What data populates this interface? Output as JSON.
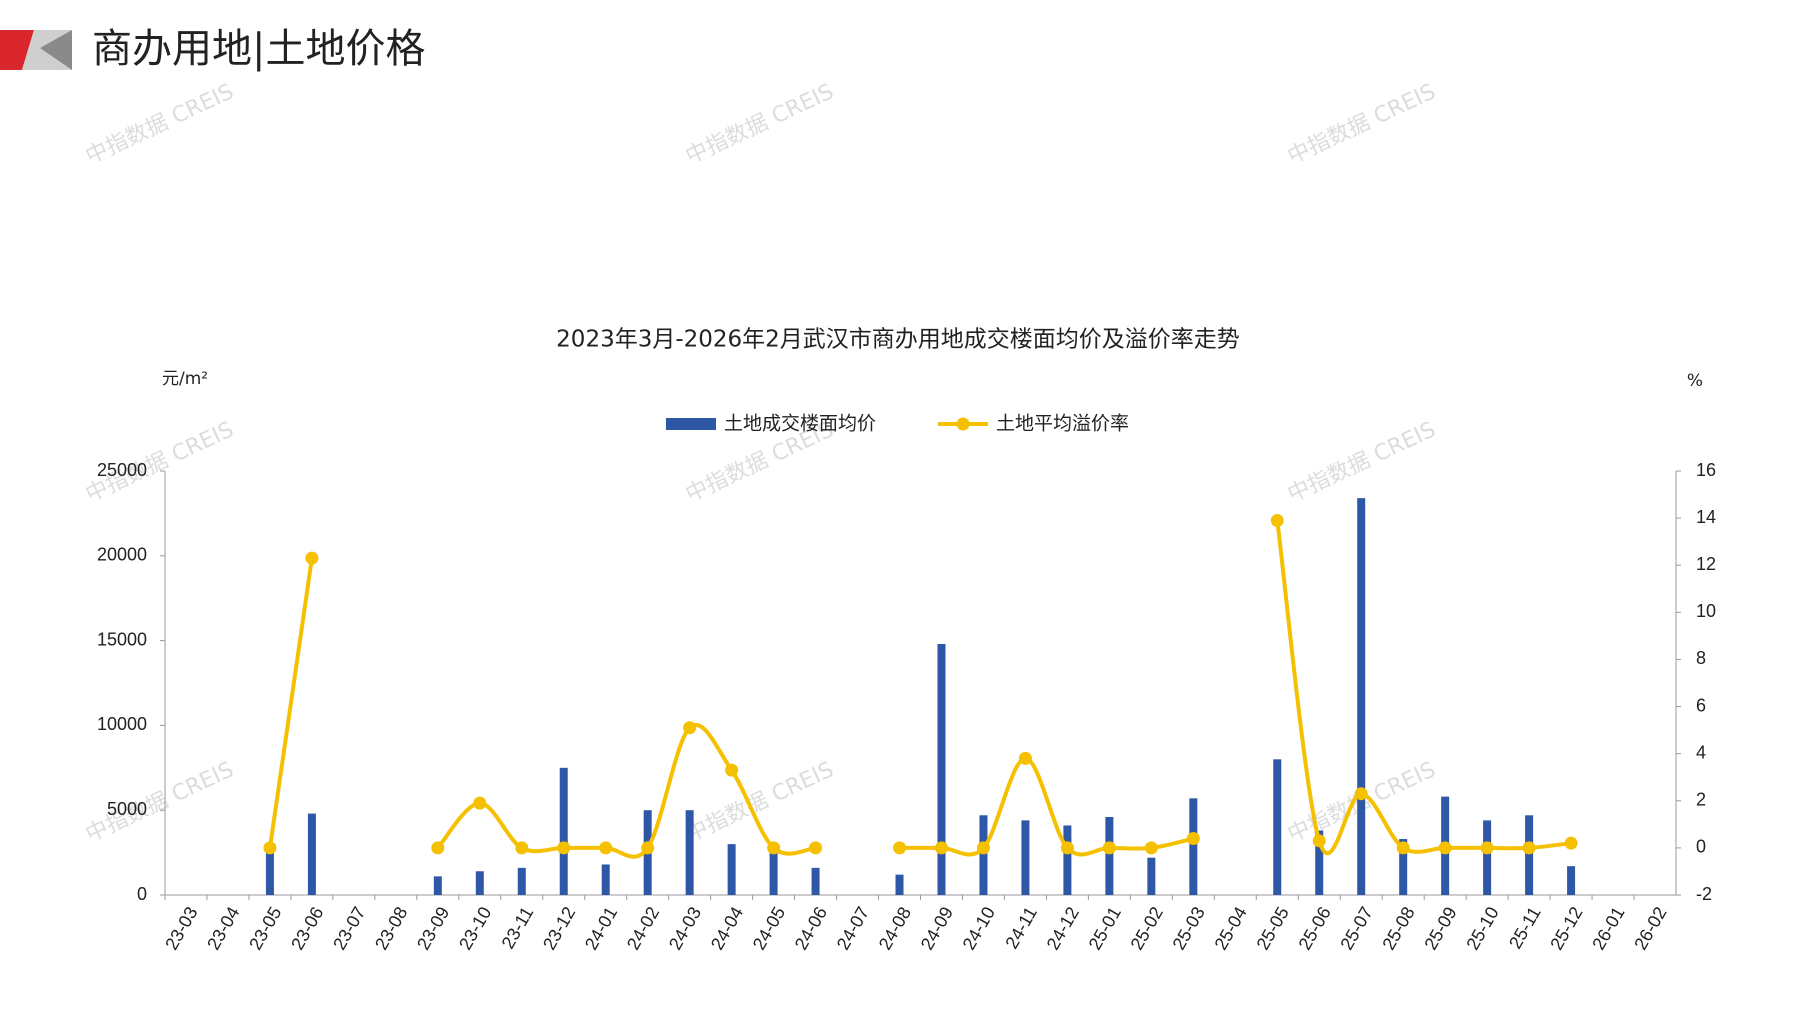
{
  "header": {
    "title": "商办用地|土地价格"
  },
  "watermarks": [
    "中指数据 CREIS",
    "中指数据 CREIS",
    "中指数据 CREIS",
    "中指数据 CREIS",
    "中指数据 CREIS",
    "中指数据 CREIS",
    "中指数据 CREIS",
    "中指数据 CREIS",
    "中指数据 CREIS"
  ],
  "chart_data": {
    "type": "bar-line",
    "title": "2023年3月-2026年2月武汉市商办用地成交楼面均价及溢价率走势",
    "y_unit": "元/m²",
    "y2_unit": "%",
    "categories": [
      "23-03",
      "23-04",
      "23-05",
      "23-06",
      "23-07",
      "23-08",
      "23-09",
      "23-10",
      "23-11",
      "23-12",
      "24-01",
      "24-02",
      "24-03",
      "24-04",
      "24-05",
      "24-06",
      "24-07",
      "24-08",
      "24-09",
      "24-10",
      "24-11",
      "24-12",
      "25-01",
      "25-02",
      "25-03",
      "25-04",
      "25-05",
      "25-06",
      "25-07",
      "25-08",
      "25-09",
      "25-10",
      "25-11",
      "25-12",
      "26-01",
      "26-02"
    ],
    "series": [
      {
        "name": "土地成交楼面均价",
        "type": "bar",
        "color": "#2e58a6",
        "values": [
          null,
          null,
          2800,
          4800,
          null,
          null,
          1100,
          1400,
          1600,
          7500,
          1800,
          5000,
          5000,
          3000,
          2800,
          1600,
          null,
          1200,
          14800,
          4700,
          4400,
          4100,
          4600,
          2200,
          5700,
          null,
          8000,
          3800,
          23400,
          3300,
          5800,
          4400,
          4700,
          1700,
          null,
          null
        ]
      },
      {
        "name": "土地平均溢价率",
        "type": "line",
        "axis": "y2",
        "color": "#f5c000",
        "values": [
          null,
          null,
          0,
          12.3,
          null,
          null,
          0,
          1.9,
          0,
          0,
          0,
          0,
          5.1,
          3.3,
          0,
          0,
          null,
          0,
          0,
          0,
          3.8,
          0,
          0,
          0,
          0.4,
          null,
          13.9,
          0.3,
          2.3,
          0,
          0,
          0,
          0,
          0.2,
          null,
          null
        ]
      }
    ],
    "ylim": [
      0,
      25000
    ],
    "yticks": [
      0,
      5000,
      10000,
      15000,
      20000,
      25000
    ],
    "y2lim": [
      -2,
      16
    ],
    "y2ticks": [
      -2,
      0,
      2,
      4,
      6,
      8,
      10,
      12,
      14,
      16
    ],
    "legend": "top"
  }
}
